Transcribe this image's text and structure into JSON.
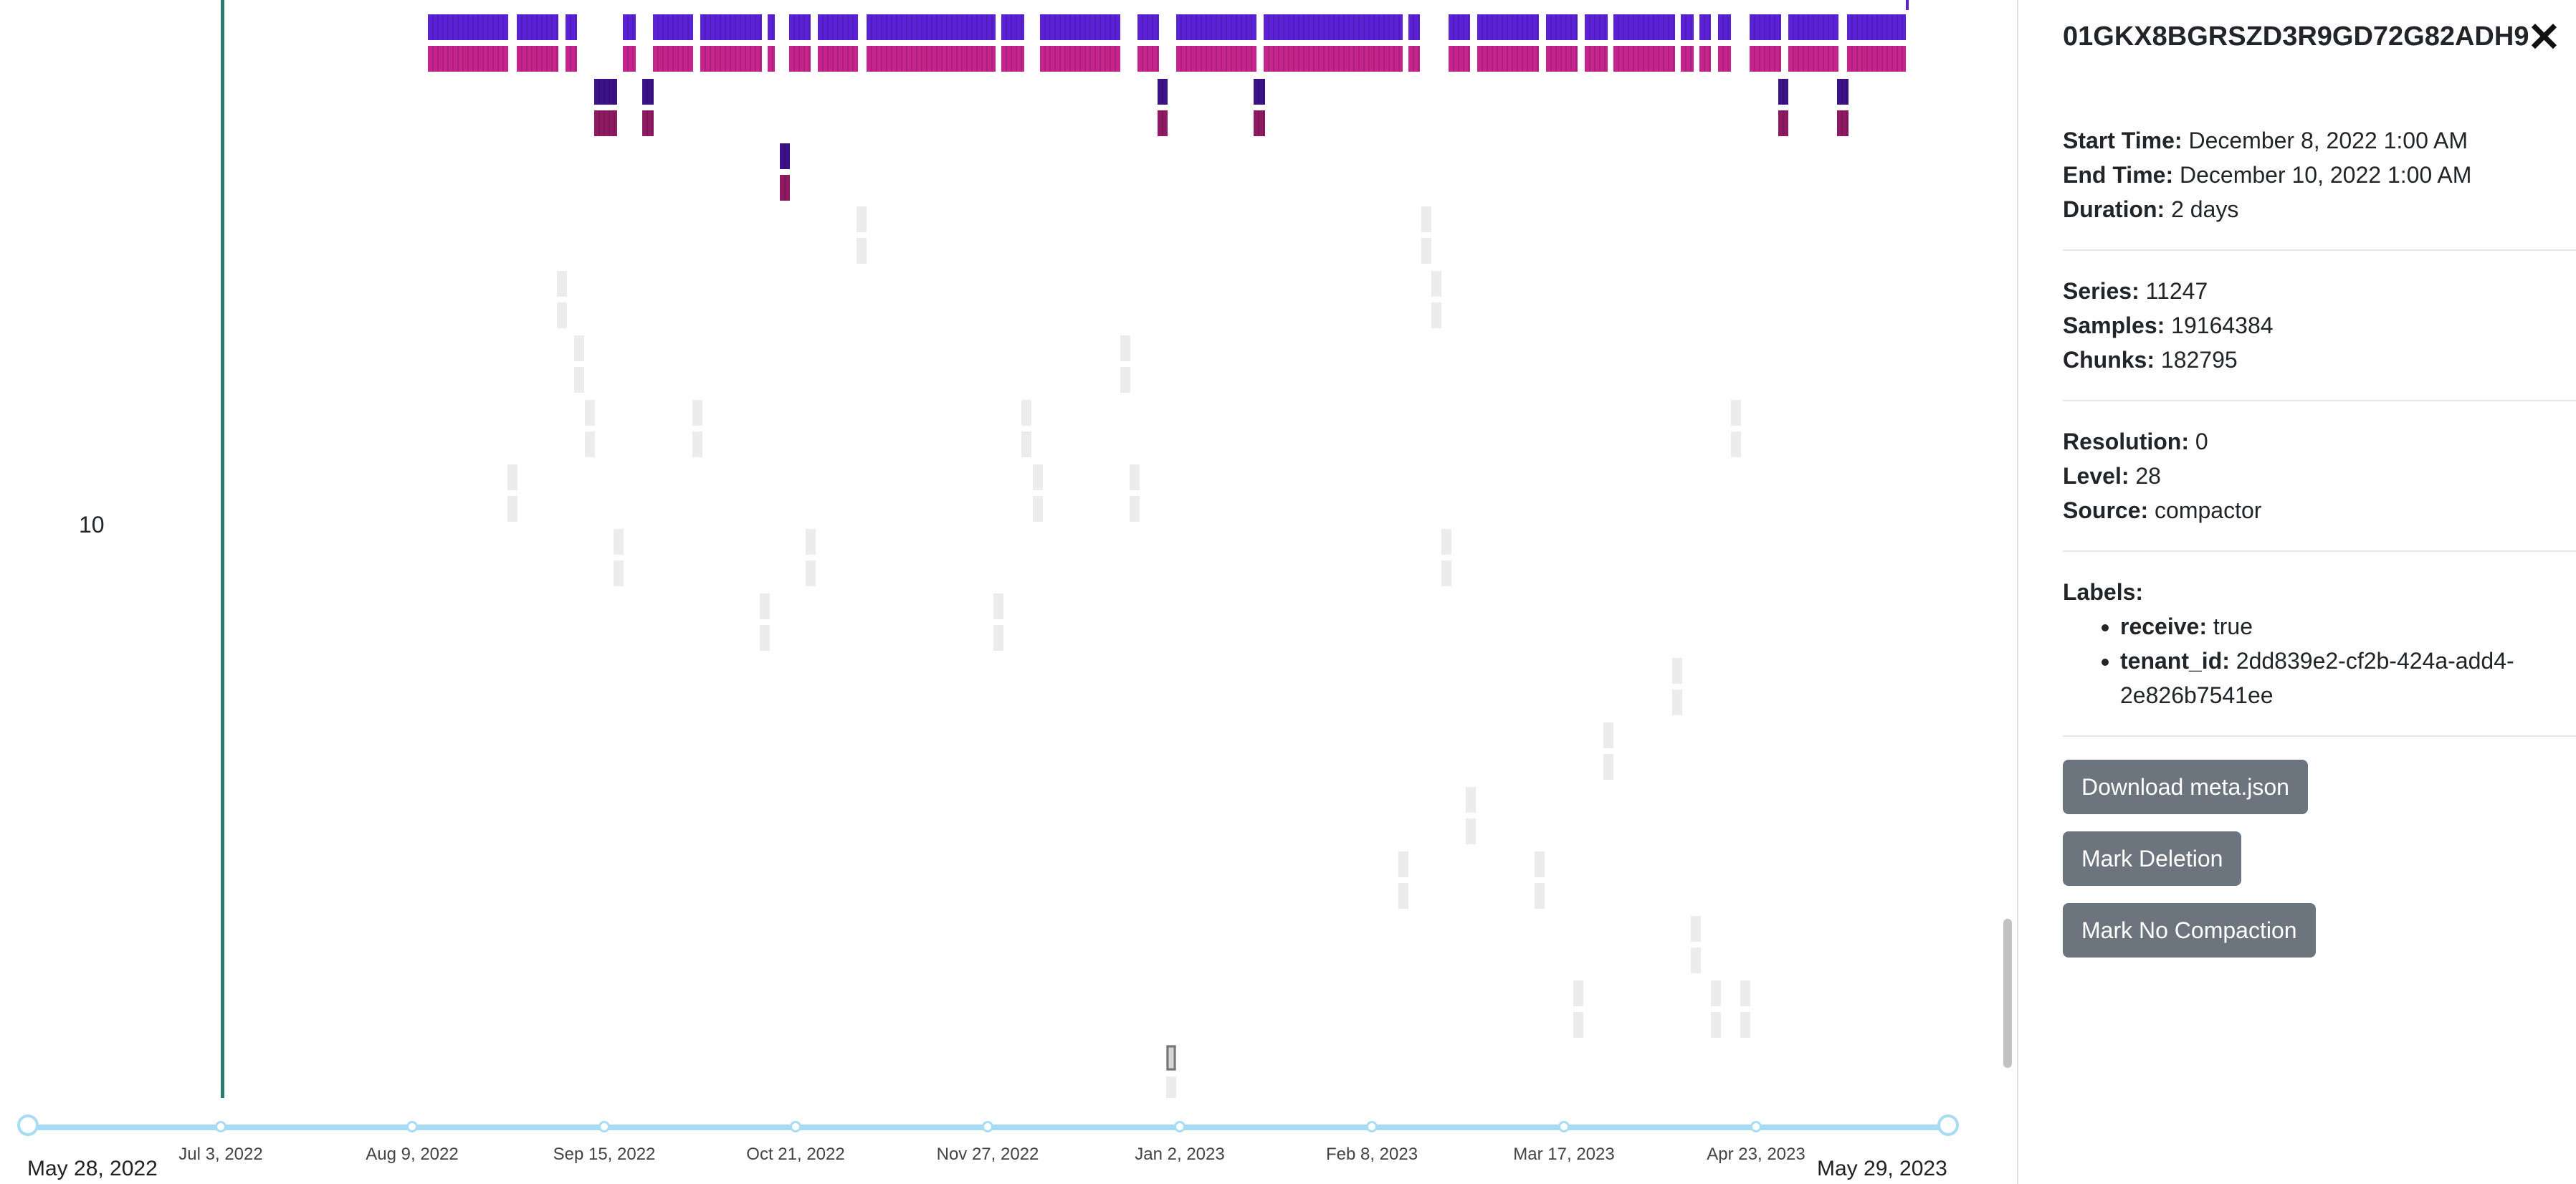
{
  "colors": {
    "meta_bar": "#5b21d6",
    "meta_bar_dark": "#3b1287",
    "data_bar": "#c4248b",
    "data_bar_dark": "#8e1a63",
    "ghost_block": "#ececec",
    "row_line": "#2a7a72",
    "axis": "#a8dcf4",
    "button_bg": "#6c757d"
  },
  "timeline": {
    "row_label": "10",
    "range_start": "May 28, 2022",
    "range_end": "May 29, 2023",
    "ticks": [
      "Jul 3, 2022",
      "Aug 9, 2022",
      "Sep 15, 2022",
      "Oct 21, 2022",
      "Nov 27, 2022",
      "Jan 2, 2023",
      "Feb 8, 2023",
      "Mar 17, 2023",
      "Apr 23, 2023"
    ]
  },
  "panel": {
    "block_id": "01GKX8BGRSZD3R9GD72G82ADH9",
    "close_icon": "close-icon",
    "start_time_label": "Start Time:",
    "start_time": "December 8, 2022 1:00 AM",
    "end_time_label": "End Time:",
    "end_time": "December 10, 2022 1:00 AM",
    "duration_label": "Duration:",
    "duration": "2 days",
    "series_label": "Series:",
    "series": "11247",
    "samples_label": "Samples:",
    "samples": "19164384",
    "chunks_label": "Chunks:",
    "chunks": "182795",
    "resolution_label": "Resolution:",
    "resolution": "0",
    "level_label": "Level:",
    "level": "28",
    "source_label": "Source:",
    "source": "compactor",
    "labels_heading": "Labels:",
    "labels": [
      {
        "key": "receive:",
        "value": "true"
      },
      {
        "key": "tenant_id:",
        "value": "2dd839e2-cf2b-424a-add4-2e826b7541ee"
      }
    ],
    "buttons": {
      "download": "Download meta.json",
      "mark_deletion": "Mark Deletion",
      "mark_no_compaction": "Mark No Compaction"
    }
  }
}
